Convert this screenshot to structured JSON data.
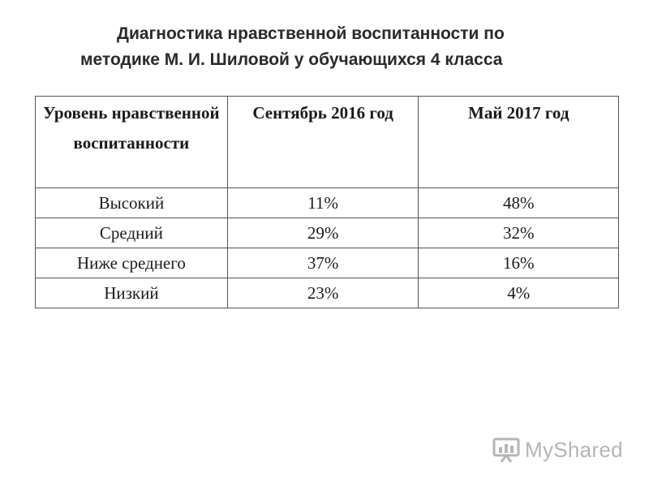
{
  "slide": {
    "title_line1": "Диагностика нравственной воспитанности по",
    "title_line2": "методике М. И. Шиловой у обучающихся 4 класса"
  },
  "table": {
    "headers": [
      "Уровень нравственной воспитанности",
      "Сентябрь 2016 год",
      "Май 2017 год"
    ],
    "rows": [
      [
        "Высокий",
        "11%",
        "48%"
      ],
      [
        "Средний",
        "29%",
        "32%"
      ],
      [
        "Ниже среднего",
        "37%",
        "16%"
      ],
      [
        "Низкий",
        "23%",
        "4%"
      ]
    ]
  },
  "watermark": {
    "text": "MyShared",
    "icon": "myshared-logo-icon",
    "color": "#b5b5b5"
  }
}
